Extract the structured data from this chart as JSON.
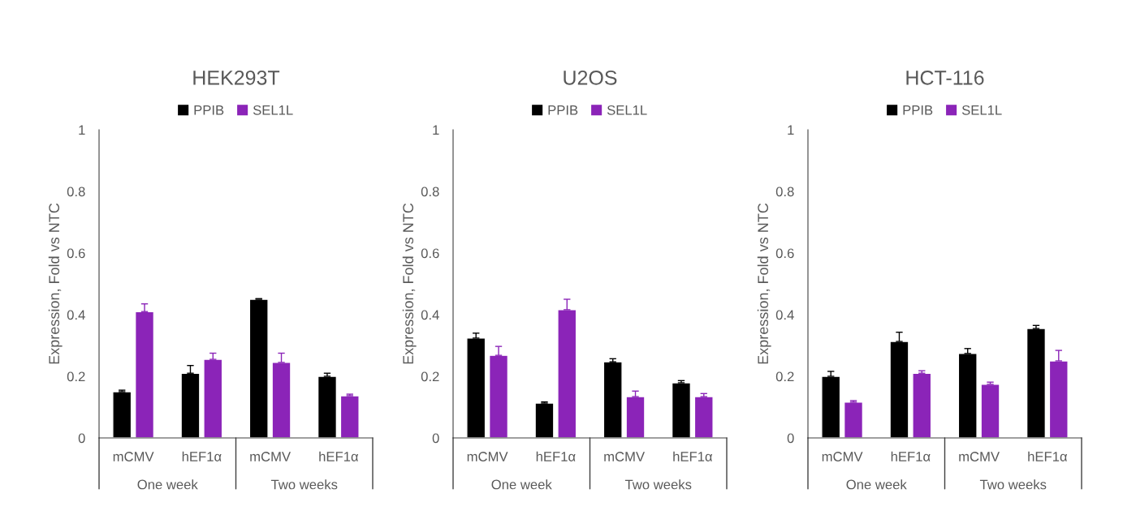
{
  "chart_data": [
    {
      "type": "bar",
      "title": "HEK293T",
      "ylabel": "Expression, Fold vs NTC",
      "categories": [
        "mCMV",
        "hEF1α",
        "mCMV",
        "hEF1α"
      ],
      "annotations": [
        "One week",
        "Two weeks"
      ],
      "ylim": [
        0,
        1
      ],
      "yticks": [
        0,
        0.2,
        0.4,
        0.6,
        0.8,
        1
      ],
      "legend": "top",
      "series": [
        {
          "name": "PPIB",
          "color": "#000000",
          "values": [
            0.15,
            0.21,
            0.45,
            0.2
          ],
          "errors": [
            [
              0.15,
              0.155
            ],
            [
              0.21,
              0.235
            ],
            [
              0.45,
              0.452
            ],
            [
              0.2,
              0.21
            ]
          ]
        },
        {
          "name": "SEL1L",
          "color": "#8b24b8",
          "values": [
            0.41,
            0.255,
            0.245,
            0.137
          ],
          "errors": [
            [
              0.41,
              0.435
            ],
            [
              0.255,
              0.275
            ],
            [
              0.245,
              0.275
            ],
            [
              0.137,
              0.142
            ]
          ]
        }
      ]
    },
    {
      "type": "bar",
      "title": "U2OS",
      "ylabel": "Expression, Fold vs NTC",
      "categories": [
        "mCMV",
        "hEF1α",
        "mCMV",
        "hEF1α"
      ],
      "annotations": [
        "One week",
        "Two weeks"
      ],
      "ylim": [
        0,
        1
      ],
      "yticks": [
        0,
        0.2,
        0.4,
        0.6,
        0.8,
        1
      ],
      "legend": "top",
      "series": [
        {
          "name": "PPIB",
          "color": "#000000",
          "values": [
            0.324,
            0.113,
            0.247,
            0.179
          ],
          "errors": [
            [
              0.324,
              0.34
            ],
            [
              0.113,
              0.117
            ],
            [
              0.247,
              0.257
            ],
            [
              0.179,
              0.186
            ]
          ]
        },
        {
          "name": "SEL1L",
          "color": "#8b24b8",
          "values": [
            0.268,
            0.416,
            0.134,
            0.134
          ],
          "errors": [
            [
              0.268,
              0.297
            ],
            [
              0.416,
              0.45
            ],
            [
              0.134,
              0.152
            ],
            [
              0.134,
              0.144
            ]
          ]
        }
      ]
    },
    {
      "type": "bar",
      "title": "HCT-116",
      "ylabel": "Expression, Fold vs NTC",
      "categories": [
        "mCMV",
        "hEF1α",
        "mCMV",
        "hEF1α"
      ],
      "annotations": [
        "One week",
        "Two weeks"
      ],
      "ylim": [
        0,
        1
      ],
      "yticks": [
        0,
        0.2,
        0.4,
        0.6,
        0.8,
        1
      ],
      "legend": "top",
      "series": [
        {
          "name": "PPIB",
          "color": "#000000",
          "values": [
            0.2,
            0.313,
            0.274,
            0.355
          ],
          "errors": [
            [
              0.2,
              0.216
            ],
            [
              0.313,
              0.343
            ],
            [
              0.274,
              0.29
            ],
            [
              0.355,
              0.365
            ]
          ]
        },
        {
          "name": "SEL1L",
          "color": "#8b24b8",
          "values": [
            0.116,
            0.21,
            0.174,
            0.25
          ],
          "errors": [
            [
              0.116,
              0.121
            ],
            [
              0.21,
              0.218
            ],
            [
              0.174,
              0.181
            ],
            [
              0.25,
              0.284
            ]
          ]
        }
      ]
    }
  ]
}
